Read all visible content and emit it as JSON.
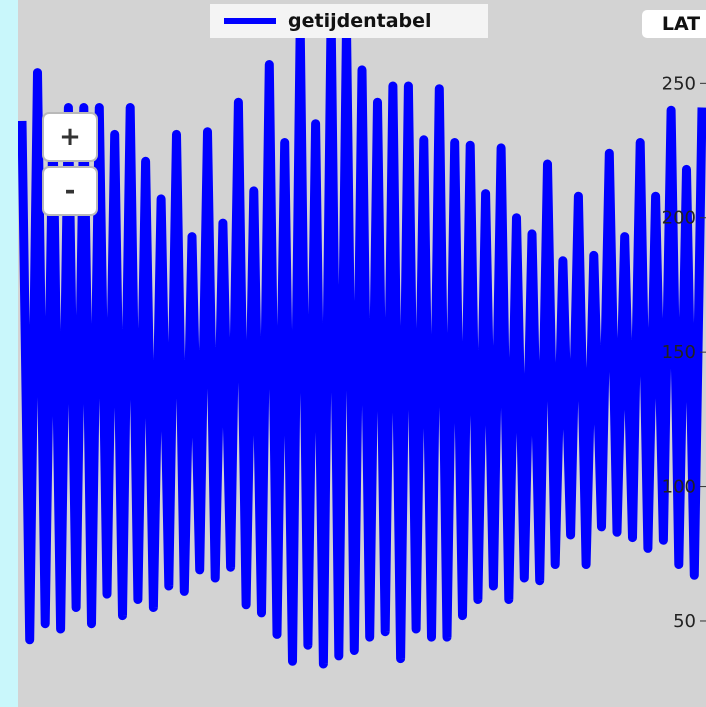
{
  "legend": {
    "label": "getijdentabel",
    "color": "#0000ff"
  },
  "badge": {
    "label": "LAT"
  },
  "zoom": {
    "in_label": "+",
    "out_label": "-"
  },
  "colors": {
    "page_bg": "#c9f7fb",
    "plot_bg": "#d3d3d3",
    "series": "#0000ff"
  },
  "chart_data": {
    "type": "line",
    "title": "",
    "xlabel": "",
    "ylabel": "",
    "ylim": [
      18,
      281
    ],
    "y_ticks": [
      50,
      100,
      150,
      200,
      250
    ],
    "grid": false,
    "legend_position": "top-center",
    "series": [
      {
        "name": "getijdentabel",
        "color": "#0000ff",
        "extrema": [
          236,
          43,
          254,
          49,
          236,
          47,
          241,
          55,
          241,
          49,
          241,
          60,
          231,
          52,
          241,
          58,
          221,
          55,
          207,
          63,
          231,
          61,
          193,
          69,
          232,
          66,
          198,
          70,
          243,
          56,
          210,
          53,
          257,
          45,
          228,
          35,
          271,
          41,
          235,
          34,
          275,
          37,
          271,
          39,
          255,
          44,
          243,
          46,
          249,
          36,
          249,
          47,
          229,
          44,
          248,
          44,
          228,
          52,
          227,
          58,
          209,
          63,
          226,
          58,
          200,
          66,
          194,
          65,
          220,
          71,
          184,
          82,
          208,
          71,
          186,
          85,
          224,
          83,
          193,
          81,
          228,
          77,
          208,
          80,
          240,
          71,
          218,
          67,
          241
        ]
      }
    ]
  }
}
